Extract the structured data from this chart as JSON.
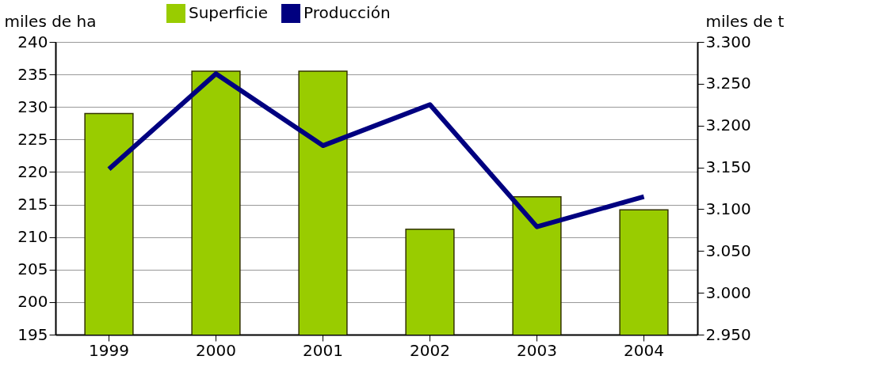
{
  "chart_data": {
    "type": "bar",
    "categories": [
      "1999",
      "2000",
      "2001",
      "2002",
      "2003",
      "2004"
    ],
    "ylabel": "miles de ha",
    "y2label": "miles de t",
    "series": [
      {
        "name": "Superficie",
        "color": "#99cc00",
        "values": [
          229.0,
          235.5,
          235.5,
          211.2,
          216.2,
          214.2
        ]
      },
      {
        "name": "Producción",
        "type": "line",
        "axis": "y2",
        "color": "#000080",
        "values": [
          3148,
          3262,
          3176,
          3225,
          3079,
          3115
        ]
      }
    ],
    "ylim": [
      195,
      240
    ],
    "yticks": [
      195,
      200,
      205,
      210,
      215,
      220,
      225,
      230,
      235,
      240
    ],
    "y2lim": [
      2950,
      3300
    ],
    "y2ticks": [
      {
        "value": 2950,
        "label": "2.950"
      },
      {
        "value": 3000,
        "label": "3.000"
      },
      {
        "value": 3050,
        "label": "3.050"
      },
      {
        "value": 3100,
        "label": "3.100"
      },
      {
        "value": 3150,
        "label": "3.150"
      },
      {
        "value": 3200,
        "label": "3.200"
      },
      {
        "value": 3250,
        "label": "3.250"
      },
      {
        "value": 3300,
        "label": "3.300"
      }
    ],
    "grid": "y",
    "legend": "top",
    "marker": "none",
    "line_style": "solid"
  }
}
